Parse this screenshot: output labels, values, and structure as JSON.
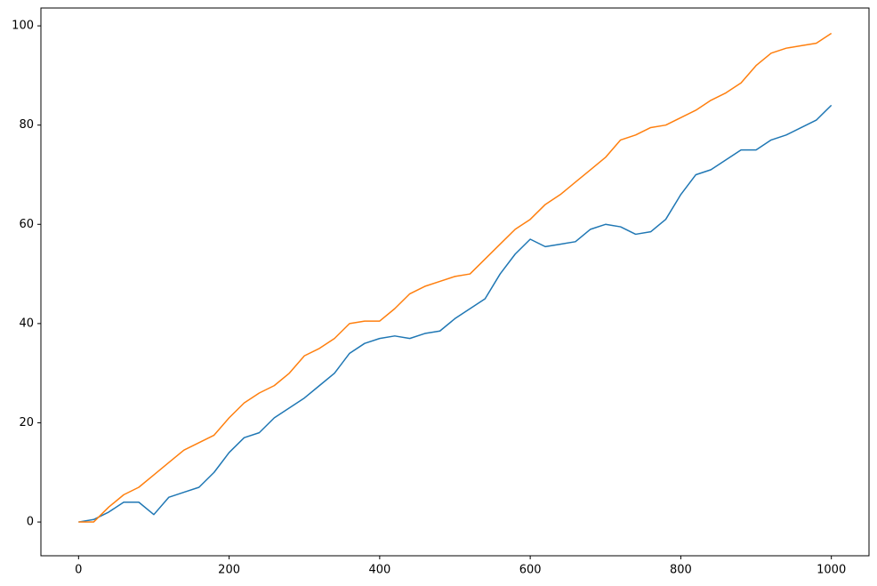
{
  "chart_data": {
    "type": "line",
    "x": [
      0,
      20,
      40,
      60,
      80,
      100,
      120,
      140,
      160,
      180,
      200,
      220,
      240,
      260,
      280,
      300,
      320,
      340,
      360,
      380,
      400,
      420,
      440,
      460,
      480,
      500,
      520,
      540,
      560,
      580,
      600,
      620,
      640,
      660,
      680,
      700,
      720,
      740,
      760,
      780,
      800,
      820,
      840,
      860,
      880,
      900,
      920,
      940,
      960,
      980,
      1000
    ],
    "series": [
      {
        "color": "#1f77b4",
        "values": [
          0,
          0.5,
          2,
          4,
          4,
          1.5,
          5,
          6,
          7,
          10,
          14,
          17,
          18,
          21,
          23,
          25,
          27.5,
          30,
          34,
          36,
          37,
          37.5,
          37,
          38,
          38.5,
          41,
          43,
          45,
          50,
          54,
          57,
          55.5,
          56,
          56.5,
          59,
          60,
          59.5,
          58,
          58.5,
          61,
          66,
          70,
          71,
          73,
          75,
          75,
          77,
          78,
          79.5,
          81,
          84
        ]
      },
      {
        "color": "#ff7f0e",
        "values": [
          0,
          0,
          3,
          5.5,
          7,
          9.5,
          12,
          14.5,
          16,
          17.5,
          21,
          24,
          26,
          27.5,
          30,
          33.5,
          35,
          37,
          40,
          40.5,
          40.5,
          43,
          46,
          47.5,
          48.5,
          49.5,
          50,
          53,
          56,
          59,
          61,
          64,
          66,
          68.5,
          71,
          73.5,
          77,
          78,
          79.5,
          80,
          81.5,
          83,
          85,
          86.5,
          88.5,
          92,
          94.5,
          95.5,
          96,
          96.5,
          98.5
        ]
      }
    ],
    "xlim": [
      -50,
      1050
    ],
    "xticks": [
      0,
      200,
      400,
      600,
      800,
      1000
    ],
    "ylim": [
      -6.8,
      103.6
    ],
    "yticks": [
      0,
      20,
      40,
      60,
      80,
      100
    ]
  }
}
